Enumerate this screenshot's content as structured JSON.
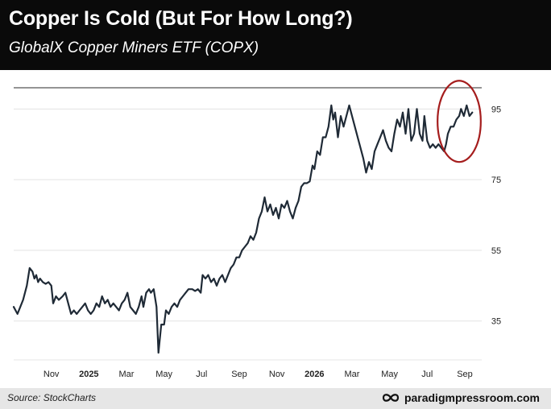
{
  "header": {
    "title": "Copper Is Cold (But For How Long?)",
    "subtitle": "GlobalX Copper Miners ETF (COPX)"
  },
  "footer": {
    "source": "Source: StockCharts",
    "brand": "paradigmpressroom.com",
    "brand_icon": "infinity-icon"
  },
  "colors": {
    "line": "#1f2a36",
    "circle": "#a51d1d",
    "header_bg": "#0a0a0a",
    "footer_bg": "#e6e6e6"
  },
  "chart_data": {
    "type": "line",
    "title": "",
    "xlabel": "",
    "ylabel": "",
    "ylim": [
      24,
      101
    ],
    "yticks": [
      35,
      55,
      75,
      95
    ],
    "grid": true,
    "x_labels": [
      {
        "label": "Nov",
        "x": 2
      },
      {
        "label": "2025",
        "x": 4,
        "bold": true
      },
      {
        "label": "Mar",
        "x": 6
      },
      {
        "label": "May",
        "x": 8
      },
      {
        "label": "Jul",
        "x": 10
      },
      {
        "label": "Sep",
        "x": 12
      },
      {
        "label": "Nov",
        "x": 14
      },
      {
        "label": "2026",
        "x": 16,
        "bold": true
      },
      {
        "label": "Mar",
        "x": 18
      },
      {
        "label": "May",
        "x": 20
      },
      {
        "label": "Jul",
        "x": 22
      },
      {
        "label": "Sep",
        "x": 24
      }
    ],
    "series": [
      {
        "values": [
          [
            0.0,
            39
          ],
          [
            0.2,
            37
          ],
          [
            0.5,
            41
          ],
          [
            0.7,
            45
          ],
          [
            0.85,
            50
          ],
          [
            1.0,
            49
          ],
          [
            1.1,
            47
          ],
          [
            1.2,
            48
          ],
          [
            1.3,
            46
          ],
          [
            1.4,
            47
          ],
          [
            1.55,
            46
          ],
          [
            1.7,
            45.5
          ],
          [
            1.85,
            46
          ],
          [
            2.0,
            45
          ],
          [
            2.1,
            40
          ],
          [
            2.25,
            42
          ],
          [
            2.4,
            41
          ],
          [
            2.6,
            42
          ],
          [
            2.75,
            43
          ],
          [
            2.9,
            40
          ],
          [
            3.05,
            37
          ],
          [
            3.2,
            38
          ],
          [
            3.35,
            37
          ],
          [
            3.5,
            38
          ],
          [
            3.65,
            39
          ],
          [
            3.8,
            40
          ],
          [
            3.95,
            38
          ],
          [
            4.1,
            37
          ],
          [
            4.25,
            38
          ],
          [
            4.4,
            40
          ],
          [
            4.55,
            39
          ],
          [
            4.7,
            42
          ],
          [
            4.85,
            40
          ],
          [
            5.0,
            41
          ],
          [
            5.15,
            39
          ],
          [
            5.3,
            40
          ],
          [
            5.45,
            39
          ],
          [
            5.6,
            38
          ],
          [
            5.75,
            40
          ],
          [
            5.9,
            41
          ],
          [
            6.05,
            43
          ],
          [
            6.2,
            39
          ],
          [
            6.35,
            38
          ],
          [
            6.5,
            37
          ],
          [
            6.65,
            39
          ],
          [
            6.8,
            42
          ],
          [
            6.9,
            39
          ],
          [
            7.05,
            43
          ],
          [
            7.2,
            44
          ],
          [
            7.3,
            43
          ],
          [
            7.45,
            44
          ],
          [
            7.6,
            39
          ],
          [
            7.7,
            26
          ],
          [
            7.85,
            34
          ],
          [
            8.0,
            34
          ],
          [
            8.1,
            38
          ],
          [
            8.25,
            37
          ],
          [
            8.4,
            39
          ],
          [
            8.55,
            40
          ],
          [
            8.7,
            39
          ],
          [
            8.85,
            41
          ],
          [
            9.0,
            42
          ],
          [
            9.15,
            43
          ],
          [
            9.3,
            44
          ],
          [
            9.5,
            44
          ],
          [
            9.65,
            43.5
          ],
          [
            9.8,
            44
          ],
          [
            9.95,
            43
          ],
          [
            10.05,
            48
          ],
          [
            10.2,
            47
          ],
          [
            10.35,
            48
          ],
          [
            10.5,
            46
          ],
          [
            10.65,
            47
          ],
          [
            10.8,
            45
          ],
          [
            10.95,
            47
          ],
          [
            11.1,
            48
          ],
          [
            11.25,
            46
          ],
          [
            11.4,
            48
          ],
          [
            11.55,
            50
          ],
          [
            11.7,
            51
          ],
          [
            11.85,
            53
          ],
          [
            12.0,
            53
          ],
          [
            12.15,
            55
          ],
          [
            12.3,
            56
          ],
          [
            12.45,
            57
          ],
          [
            12.6,
            59
          ],
          [
            12.75,
            58
          ],
          [
            12.9,
            60
          ],
          [
            13.05,
            64
          ],
          [
            13.2,
            66
          ],
          [
            13.35,
            70
          ],
          [
            13.5,
            66
          ],
          [
            13.65,
            68
          ],
          [
            13.8,
            65
          ],
          [
            13.95,
            67
          ],
          [
            14.1,
            64
          ],
          [
            14.25,
            68
          ],
          [
            14.4,
            67
          ],
          [
            14.55,
            69
          ],
          [
            14.7,
            66
          ],
          [
            14.85,
            64
          ],
          [
            15.0,
            67
          ],
          [
            15.15,
            69
          ],
          [
            15.3,
            73
          ],
          [
            15.45,
            74
          ],
          [
            15.6,
            74
          ],
          [
            15.75,
            74.5
          ],
          [
            15.9,
            79
          ],
          [
            16.0,
            78
          ],
          [
            16.15,
            83
          ],
          [
            16.3,
            82
          ],
          [
            16.45,
            87
          ],
          [
            16.6,
            87
          ],
          [
            16.75,
            90
          ],
          [
            16.9,
            96
          ],
          [
            17.0,
            92
          ],
          [
            17.1,
            94
          ],
          [
            17.25,
            87
          ],
          [
            17.4,
            93
          ],
          [
            17.55,
            90
          ],
          [
            17.7,
            93
          ],
          [
            17.85,
            96
          ],
          [
            18.0,
            93
          ],
          [
            18.15,
            90
          ],
          [
            18.3,
            87
          ],
          [
            18.45,
            84
          ],
          [
            18.6,
            81
          ],
          [
            18.75,
            77
          ],
          [
            18.9,
            80
          ],
          [
            19.05,
            78
          ],
          [
            19.2,
            83
          ],
          [
            19.35,
            85
          ],
          [
            19.5,
            87
          ],
          [
            19.65,
            89
          ],
          [
            19.8,
            86
          ],
          [
            19.95,
            84
          ],
          [
            20.1,
            83
          ],
          [
            20.25,
            88
          ],
          [
            20.4,
            92
          ],
          [
            20.55,
            90
          ],
          [
            20.7,
            94
          ],
          [
            20.85,
            88
          ],
          [
            21.0,
            95
          ],
          [
            21.15,
            86
          ],
          [
            21.3,
            88
          ],
          [
            21.45,
            95
          ],
          [
            21.6,
            88
          ],
          [
            21.75,
            86
          ],
          [
            21.85,
            93
          ],
          [
            22.0,
            86
          ],
          [
            22.15,
            84
          ],
          [
            22.3,
            85
          ],
          [
            22.45,
            84
          ],
          [
            22.6,
            85
          ],
          [
            22.75,
            84
          ],
          [
            22.9,
            83
          ],
          [
            23.0,
            85
          ],
          [
            23.1,
            88
          ],
          [
            23.25,
            90
          ],
          [
            23.4,
            90
          ],
          [
            23.55,
            92
          ],
          [
            23.7,
            93
          ],
          [
            23.8,
            95
          ],
          [
            23.95,
            93
          ],
          [
            24.1,
            96
          ],
          [
            24.25,
            93
          ],
          [
            24.4,
            94
          ]
        ]
      }
    ],
    "annotations": [
      {
        "type": "ellipse",
        "cx": 23.7,
        "cy": 91.5,
        "rx": 1.15,
        "ry": 11.5
      }
    ]
  }
}
